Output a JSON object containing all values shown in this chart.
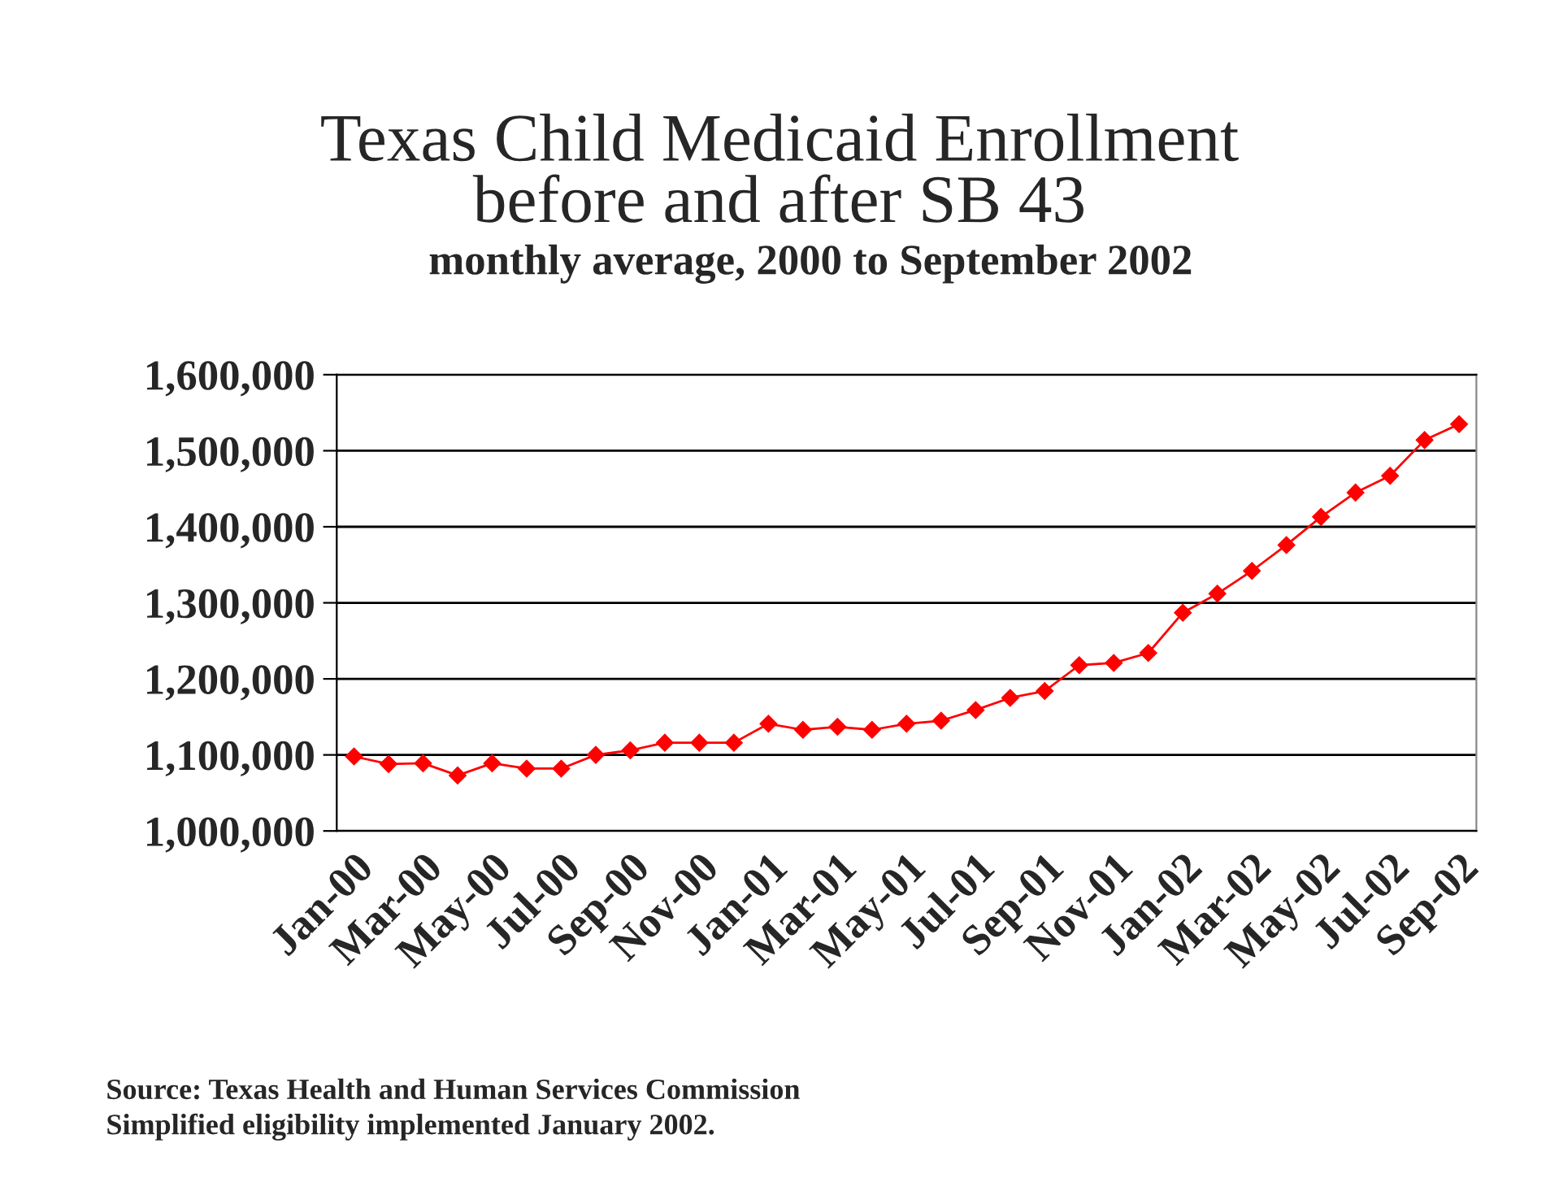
{
  "chart_data": {
    "type": "line",
    "title": "Texas Child Medicaid Enrollment\nbefore and after SB 43",
    "subtitle": "monthly average, 2000 to September 2002",
    "categories": [
      "Jan-00",
      null,
      "Mar-00",
      null,
      "May-00",
      null,
      "Jul-00",
      null,
      "Sep-00",
      null,
      "Nov-00",
      null,
      "Jan-01",
      null,
      "Mar-01",
      null,
      "May-01",
      null,
      "Jul-01",
      null,
      "Sep-01",
      null,
      "Nov-01",
      null,
      "Jan-02",
      null,
      "Mar-02",
      null,
      "May-02",
      null,
      "Jul-02",
      null,
      "Sep-02"
    ],
    "series": [
      {
        "color": "#ff0000",
        "values": [
          1098000,
          1088000,
          1089000,
          1073000,
          1089000,
          1082000,
          1082000,
          1100000,
          1106000,
          1116000,
          1116000,
          1116000,
          1141000,
          1133000,
          1137000,
          1133000,
          1141000,
          1145000,
          1159000,
          1175000,
          1184000,
          1218000,
          1221000,
          1234000,
          1287000,
          1312000,
          1342000,
          1376000,
          1413000,
          1445000,
          1467000,
          1514000,
          1535000
        ]
      }
    ],
    "ylim": [
      1000000,
      1600000
    ],
    "yticks": [
      {
        "value": 1000000,
        "label": "1,000,000"
      },
      {
        "value": 1100000,
        "label": "1,100,000"
      },
      {
        "value": 1200000,
        "label": "1,200,000"
      },
      {
        "value": 1300000,
        "label": "1,300,000"
      },
      {
        "value": 1400000,
        "label": "1,400,000"
      },
      {
        "value": 1500000,
        "label": "1,500,000"
      },
      {
        "value": 1600000,
        "label": "1,600,000"
      }
    ],
    "grid": "y",
    "marker": "diamond",
    "line_style": "solid",
    "legend": false,
    "annotations": [
      "Source: Texas Health and Human Services Commission",
      "Simplified eligibility implemented January 2002."
    ]
  }
}
